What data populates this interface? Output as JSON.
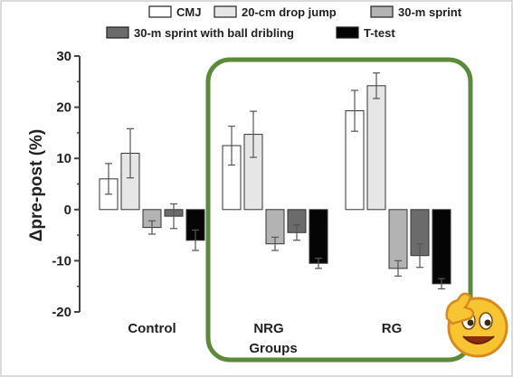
{
  "chart_data": {
    "type": "bar",
    "categories": [
      "Control",
      "NRG",
      "RG"
    ],
    "xlabel": "Groups",
    "ylabel": "Δpre-post (%)",
    "ylim": [
      -20,
      30
    ],
    "yticks": [
      -20,
      -10,
      0,
      10,
      20,
      30
    ],
    "grid": false,
    "legend_position": "top",
    "series": [
      {
        "name": "CMJ",
        "color": "#ffffff",
        "values": [
          6,
          12.5,
          19.3
        ],
        "errors": [
          3,
          3.8,
          4
        ]
      },
      {
        "name": "20-cm drop jump",
        "color": "#e6e6e6",
        "values": [
          11,
          14.7,
          24.2
        ],
        "errors": [
          4.8,
          4.5,
          2.5
        ]
      },
      {
        "name": "30-m sprint",
        "color": "#b3b3b3",
        "values": [
          -3.5,
          -6.7,
          -11.5
        ],
        "errors": [
          1.3,
          1.3,
          1.5
        ]
      },
      {
        "name": "30-m sprint with ball dribling",
        "color": "#6b6b6b",
        "values": [
          -1.3,
          -4.5,
          -9
        ],
        "errors": [
          2.4,
          1.5,
          2.3
        ]
      },
      {
        "name": "T-test",
        "color": "#050505",
        "values": [
          -6,
          -10.5,
          -14.5
        ],
        "errors": [
          2,
          1,
          1
        ]
      }
    ]
  },
  "decor": {
    "highlight_box_color": "#5b8a3a",
    "emoji_icon": "thumbs-up-emoji-icon"
  }
}
